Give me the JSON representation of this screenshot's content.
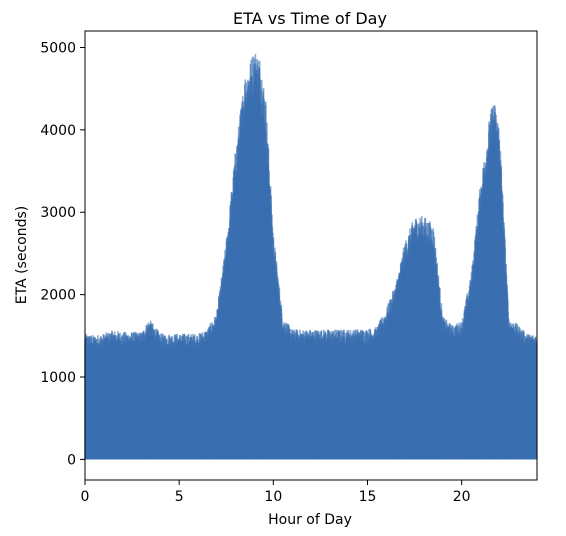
{
  "chart_data": {
    "type": "scatter",
    "title": "ETA vs Time of Day",
    "xlabel": "Hour of Day",
    "ylabel": "ETA (seconds)",
    "xlim": [
      0,
      24
    ],
    "ylim": [
      -250,
      5200
    ],
    "x_ticks": [
      0,
      5,
      10,
      15,
      20
    ],
    "y_ticks": [
      0,
      1000,
      2000,
      3000,
      4000,
      5000
    ],
    "grid": false,
    "legend": "none",
    "point_color": "#3a6fb0",
    "point_alpha": 0.6,
    "y_min_value": 0,
    "upper_envelope": {
      "x": [
        0,
        0.5,
        1,
        1.5,
        2,
        3,
        3.4,
        4,
        5,
        6,
        6.5,
        7,
        7.5,
        8,
        8.5,
        9,
        9.3,
        9.6,
        10,
        10.5,
        11,
        12,
        13,
        14,
        15,
        15.5,
        16,
        16.5,
        17,
        17.5,
        18,
        18.5,
        19,
        19.5,
        20,
        20.5,
        21,
        21.5,
        21.7,
        22,
        22.5,
        23,
        23.5,
        24
      ],
      "y": [
        1500,
        1480,
        1500,
        1540,
        1520,
        1520,
        1680,
        1500,
        1500,
        1500,
        1560,
        1750,
        2600,
        3700,
        4600,
        4900,
        4800,
        4300,
        2700,
        1700,
        1550,
        1550,
        1550,
        1550,
        1560,
        1580,
        1800,
        2100,
        2600,
        2900,
        2900,
        2800,
        1700,
        1600,
        1650,
        2200,
        3300,
        4100,
        4300,
        4000,
        1700,
        1600,
        1500,
        1500
      ]
    }
  }
}
